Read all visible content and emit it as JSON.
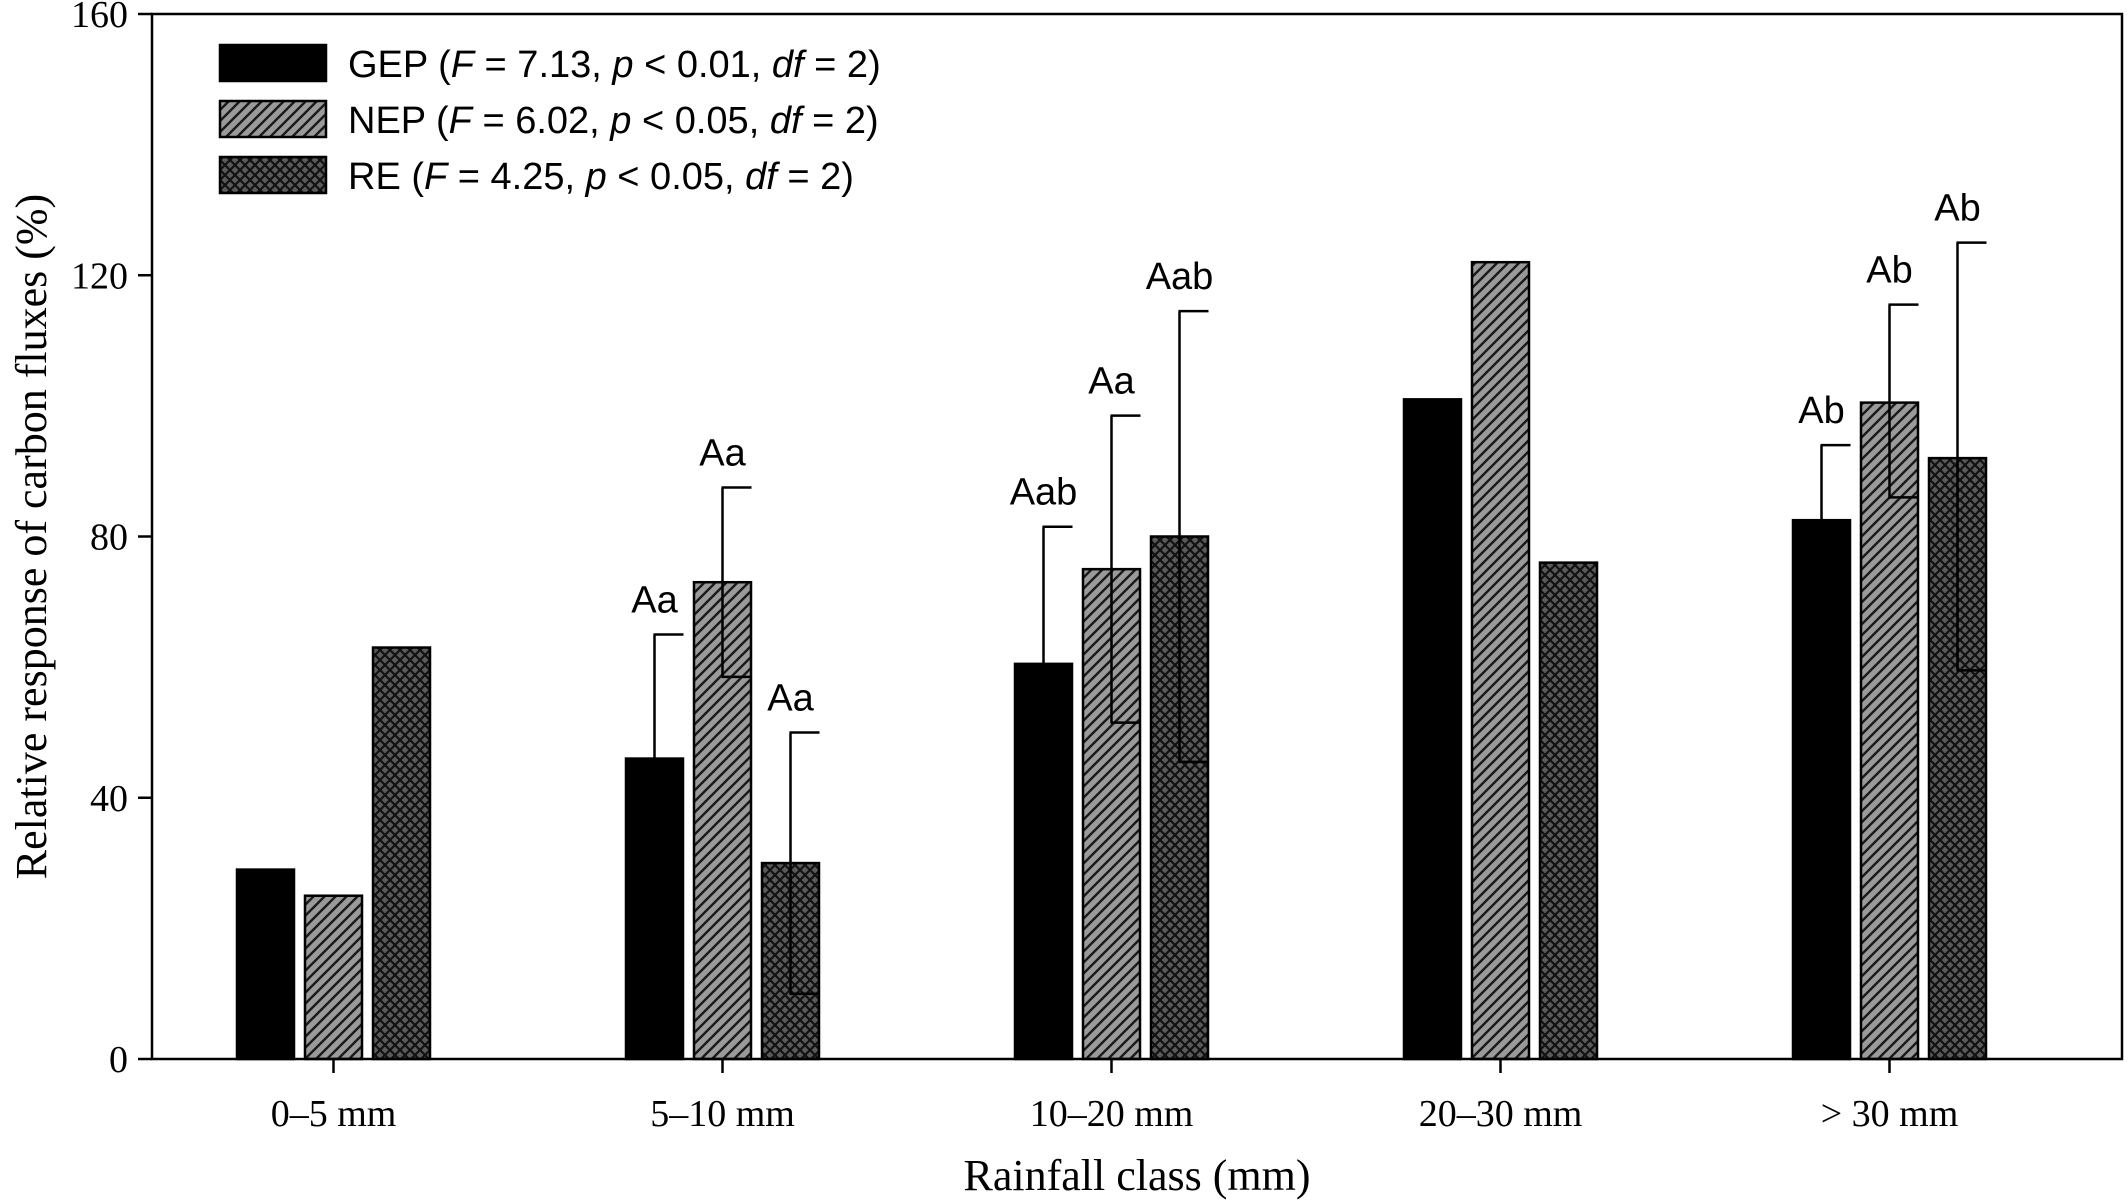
{
  "chart_data": {
    "type": "bar",
    "title": "",
    "xlabel": "Rainfall class (mm)",
    "ylabel": "Relative response of carbon fluxes (%)",
    "ylim": [
      0,
      160
    ],
    "yticks": [
      0,
      40,
      80,
      120,
      160
    ],
    "grid": false,
    "legend_position": "top-left",
    "categories": [
      "0–5 mm",
      "5–10 mm",
      "10–20 mm",
      "20–30 mm",
      "> 30 mm"
    ],
    "series": [
      {
        "name": "GEP",
        "legend_stats": {
          "F": "F",
          "F_value": " = 7.13, ",
          "p": "p",
          "p_value": " < 0.01, ",
          "df": "df",
          "df_value": " = 2)"
        },
        "fill": "black",
        "values": [
          29,
          46,
          60.5,
          101,
          82.5
        ],
        "error_upper": [
          null,
          65,
          81.5,
          null,
          94
        ],
        "sig_labels": [
          "",
          "Aa",
          "Aab",
          "",
          "Ab"
        ]
      },
      {
        "name": "NEP",
        "legend_stats": {
          "F": "F",
          "F_value": " = 6.02, ",
          "p": "p",
          "p_value": " < 0.05, ",
          "df": "df",
          "df_value": " = 2)"
        },
        "fill": "diagonal-hatch",
        "values": [
          25,
          73,
          75,
          122,
          100.5
        ],
        "error_upper": [
          null,
          87.5,
          98.5,
          null,
          115.5
        ],
        "error_lower": [
          null,
          58.5,
          51.5,
          null,
          86
        ],
        "sig_labels": [
          "",
          "Aa",
          "Aa",
          "",
          "Ab"
        ]
      },
      {
        "name": "RE",
        "legend_stats": {
          "F": "F",
          "F_value": " = 4.25, ",
          "p": "p",
          "p_value": " < 0.05, ",
          "df": "df",
          "df_value": " = 2)"
        },
        "fill": "crosshatch",
        "values": [
          63,
          30,
          80,
          76,
          92
        ],
        "error_upper": [
          null,
          50,
          114.5,
          null,
          125
        ],
        "error_lower": [
          null,
          10,
          45.5,
          null,
          59.5
        ],
        "sig_labels": [
          "",
          "Aa",
          "Aab",
          "",
          "Ab"
        ]
      }
    ]
  },
  "colors": {
    "gep_fill": "#000000",
    "hatch_background": "#9a9a9a",
    "hatch_line": "#1a1a1a",
    "cross_background": "#5a5a5a",
    "axis": "#000000"
  }
}
